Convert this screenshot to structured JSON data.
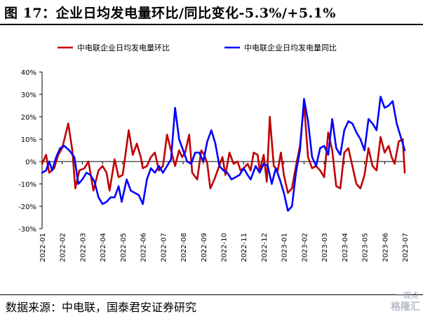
{
  "title": "图 17：企业日均发电量环比/同比变化-5.3%/+5.1%",
  "source": "数据来源：中电联，国泰君安证券研究",
  "watermark": {
    "text": "一观点",
    "logo": "格隆汇"
  },
  "chart_data": {
    "type": "line",
    "title": "",
    "xlabel": "",
    "ylabel": "",
    "ylim": [
      -30,
      40
    ],
    "yticks": [
      -30,
      -20,
      -10,
      0,
      10,
      20,
      30,
      40
    ],
    "ytick_labels": [
      "-30%",
      "-20%",
      "-10%",
      "0%",
      "10%",
      "20%",
      "30%",
      "40%"
    ],
    "x_categories": [
      "2022-01",
      "2022-02",
      "2022-03",
      "2022-04",
      "2022-05",
      "2022-06",
      "2022-07",
      "2022-08",
      "2022-09",
      "2022-10",
      "2022-11",
      "2022-12",
      "2023-01",
      "2023-02",
      "2023-03",
      "2023-04",
      "2023-05",
      "2023-06",
      "2023-07"
    ],
    "grid": false,
    "legend": "top",
    "series": [
      {
        "name": "中电联企业日均发电量环比",
        "color": "#c00000",
        "points": [
          [
            0,
            -1
          ],
          [
            0.2,
            3
          ],
          [
            0.35,
            -5
          ],
          [
            0.6,
            -3
          ],
          [
            0.8,
            3
          ],
          [
            1.0,
            6
          ],
          [
            1.3,
            17
          ],
          [
            1.5,
            5
          ],
          [
            1.65,
            -12
          ],
          [
            1.85,
            -4
          ],
          [
            2.1,
            -3
          ],
          [
            2.3,
            0
          ],
          [
            2.55,
            -13
          ],
          [
            2.8,
            -4
          ],
          [
            3.0,
            -2
          ],
          [
            3.2,
            -5
          ],
          [
            3.35,
            -13
          ],
          [
            3.6,
            1
          ],
          [
            3.8,
            -7
          ],
          [
            4.0,
            -6
          ],
          [
            4.3,
            14
          ],
          [
            4.5,
            3
          ],
          [
            4.7,
            8
          ],
          [
            4.9,
            2
          ],
          [
            5.0,
            -3
          ],
          [
            5.2,
            -2
          ],
          [
            5.4,
            2
          ],
          [
            5.6,
            4
          ],
          [
            5.8,
            -4
          ],
          [
            6.0,
            -2
          ],
          [
            6.2,
            12
          ],
          [
            6.4,
            5
          ],
          [
            6.6,
            -2
          ],
          [
            6.8,
            5
          ],
          [
            6.95,
            2
          ],
          [
            7.1,
            4
          ],
          [
            7.3,
            12
          ],
          [
            7.45,
            -5
          ],
          [
            7.7,
            -8
          ],
          [
            7.9,
            5
          ],
          [
            8.05,
            3
          ],
          [
            8.2,
            -1
          ],
          [
            8.35,
            -12
          ],
          [
            8.55,
            -8
          ],
          [
            8.75,
            -3
          ],
          [
            8.95,
            2
          ],
          [
            9.1,
            -6
          ],
          [
            9.3,
            4
          ],
          [
            9.5,
            -1
          ],
          [
            9.7,
            0
          ],
          [
            9.85,
            -4
          ],
          [
            10.0,
            -3
          ],
          [
            10.2,
            -1
          ],
          [
            10.35,
            -4
          ],
          [
            10.5,
            4
          ],
          [
            10.7,
            3
          ],
          [
            10.8,
            -4
          ],
          [
            11.0,
            3
          ],
          [
            11.15,
            -9
          ],
          [
            11.3,
            20
          ],
          [
            11.5,
            -2
          ],
          [
            11.7,
            -4
          ],
          [
            11.85,
            4
          ],
          [
            12.0,
            -6
          ],
          [
            12.2,
            -14
          ],
          [
            12.4,
            -12
          ],
          [
            12.6,
            -2
          ],
          [
            12.8,
            7
          ],
          [
            13.0,
            26
          ],
          [
            13.2,
            2
          ],
          [
            13.4,
            -3
          ],
          [
            13.6,
            -2
          ],
          [
            13.8,
            -4
          ],
          [
            14.0,
            -7
          ],
          [
            14.2,
            13
          ],
          [
            14.4,
            5
          ],
          [
            14.6,
            -11
          ],
          [
            14.8,
            -12
          ],
          [
            15.0,
            4
          ],
          [
            15.2,
            6
          ],
          [
            15.4,
            -2
          ],
          [
            15.6,
            -10
          ],
          [
            15.8,
            -12
          ],
          [
            16.0,
            -6
          ],
          [
            16.2,
            6
          ],
          [
            16.4,
            -2
          ],
          [
            16.6,
            -4
          ],
          [
            16.8,
            11
          ],
          [
            17.0,
            4
          ],
          [
            17.2,
            7
          ],
          [
            17.35,
            2
          ],
          [
            17.5,
            -1
          ],
          [
            17.7,
            9
          ],
          [
            17.9,
            10
          ],
          [
            18.0,
            -5
          ]
        ]
      },
      {
        "name": "中电联企业日均发电量同比",
        "color": "#0000ff",
        "points": [
          [
            0,
            -5
          ],
          [
            0.2,
            -4
          ],
          [
            0.35,
            0
          ],
          [
            0.5,
            -4
          ],
          [
            0.7,
            2
          ],
          [
            0.9,
            6
          ],
          [
            1.1,
            7
          ],
          [
            1.35,
            5
          ],
          [
            1.6,
            2
          ],
          [
            1.8,
            -10
          ],
          [
            2.0,
            -8
          ],
          [
            2.2,
            -5
          ],
          [
            2.4,
            -6
          ],
          [
            2.6,
            -9
          ],
          [
            2.8,
            -16
          ],
          [
            3.0,
            -19
          ],
          [
            3.2,
            -18
          ],
          [
            3.4,
            -16
          ],
          [
            3.6,
            -16
          ],
          [
            3.8,
            -11
          ],
          [
            3.95,
            -18
          ],
          [
            4.2,
            -8
          ],
          [
            4.4,
            -13
          ],
          [
            4.6,
            -14
          ],
          [
            4.8,
            -15
          ],
          [
            5.0,
            -19
          ],
          [
            5.2,
            -8
          ],
          [
            5.4,
            -3
          ],
          [
            5.6,
            -5
          ],
          [
            5.8,
            -2
          ],
          [
            6.0,
            -5
          ],
          [
            6.2,
            -2
          ],
          [
            6.4,
            1
          ],
          [
            6.6,
            24
          ],
          [
            6.8,
            10
          ],
          [
            7.0,
            5
          ],
          [
            7.2,
            0
          ],
          [
            7.4,
            -1
          ],
          [
            7.6,
            4
          ],
          [
            7.8,
            4
          ],
          [
            8.0,
            0
          ],
          [
            8.2,
            9
          ],
          [
            8.4,
            14
          ],
          [
            8.6,
            8
          ],
          [
            8.8,
            -2
          ],
          [
            9.0,
            -4
          ],
          [
            9.2,
            -5
          ],
          [
            9.4,
            -8
          ],
          [
            9.6,
            -7
          ],
          [
            9.8,
            -6
          ],
          [
            10.0,
            -3
          ],
          [
            10.2,
            -6
          ],
          [
            10.35,
            -8
          ],
          [
            10.6,
            -2
          ],
          [
            10.8,
            -5
          ],
          [
            11.0,
            -1
          ],
          [
            11.2,
            -2
          ],
          [
            11.4,
            -10
          ],
          [
            11.6,
            -3
          ],
          [
            11.8,
            -8
          ],
          [
            12.0,
            -14
          ],
          [
            12.2,
            -22
          ],
          [
            12.4,
            -20
          ],
          [
            12.6,
            -5
          ],
          [
            12.8,
            5
          ],
          [
            13.0,
            28
          ],
          [
            13.2,
            18
          ],
          [
            13.4,
            2
          ],
          [
            13.6,
            -2
          ],
          [
            13.8,
            6
          ],
          [
            14.0,
            7
          ],
          [
            14.2,
            3
          ],
          [
            14.4,
            19
          ],
          [
            14.6,
            6
          ],
          [
            14.8,
            3
          ],
          [
            15.0,
            14
          ],
          [
            15.2,
            18
          ],
          [
            15.4,
            17
          ],
          [
            15.6,
            13
          ],
          [
            15.8,
            10
          ],
          [
            16.0,
            5
          ],
          [
            16.2,
            19
          ],
          [
            16.4,
            17
          ],
          [
            16.6,
            14
          ],
          [
            16.8,
            29
          ],
          [
            17.0,
            24
          ],
          [
            17.2,
            25
          ],
          [
            17.4,
            27
          ],
          [
            17.6,
            17
          ],
          [
            17.8,
            11
          ],
          [
            18.0,
            5
          ]
        ]
      }
    ]
  }
}
